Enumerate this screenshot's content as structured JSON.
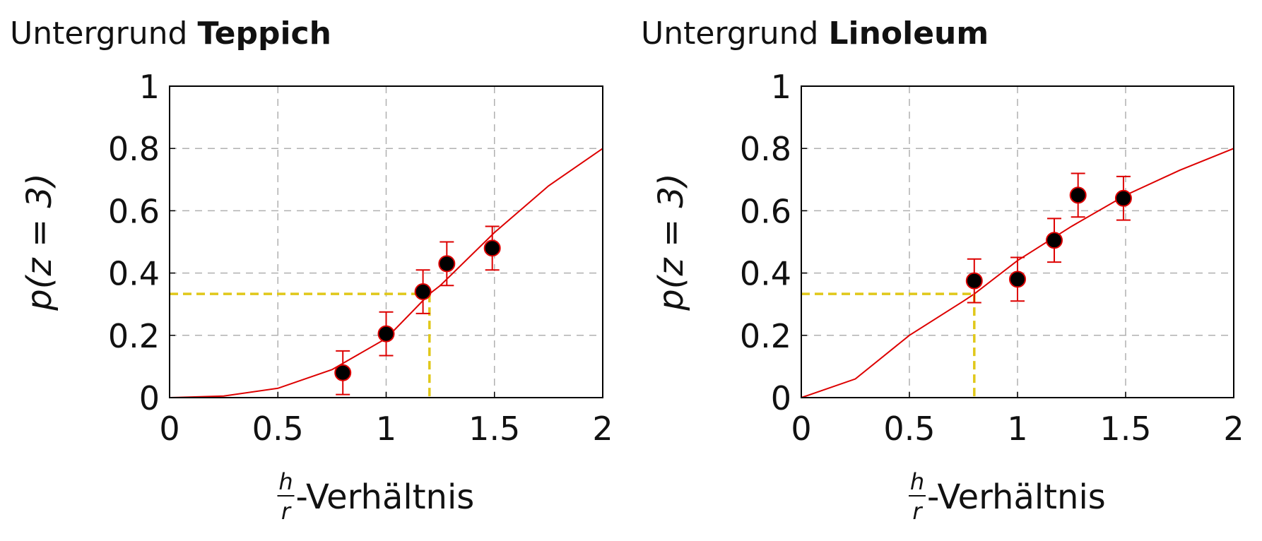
{
  "chart_data": [
    {
      "type": "scatter",
      "title": "Untergrund",
      "title_bold": "Teppich",
      "ylabel": "p(z = 3)",
      "xlabel_num": "h",
      "xlabel_den": "r",
      "xlabel": "-Verhältnis",
      "xlim": [
        0,
        2
      ],
      "ylim": [
        0,
        1
      ],
      "xticks": [
        0,
        0.5,
        1,
        1.5,
        2
      ],
      "yticks": [
        0,
        0.2,
        0.4,
        0.6,
        0.8,
        1
      ],
      "grid": true,
      "series": [
        {
          "color": "#000000",
          "edge_color": "#dd0000",
          "x": [
            0.8,
            1.0,
            1.17,
            1.28,
            1.49
          ],
          "values": [
            0.08,
            0.205,
            0.34,
            0.43,
            0.48
          ],
          "errors": [
            0.07,
            0.07,
            0.07,
            0.07,
            0.07
          ]
        }
      ],
      "fit": {
        "color": "#dd0000",
        "x": [
          0,
          0.25,
          0.5,
          0.75,
          1,
          1.2,
          1.25,
          1.5,
          1.75,
          2
        ],
        "values": [
          0,
          0.005,
          0.03,
          0.09,
          0.19,
          0.333,
          0.36,
          0.53,
          0.68,
          0.8
        ]
      },
      "reference": {
        "color": "#e0c81a",
        "x": 1.2,
        "y": 0.333
      }
    },
    {
      "type": "scatter",
      "title": "Untergrund",
      "title_bold": "Linoleum",
      "ylabel": "p(z = 3)",
      "xlabel_num": "h",
      "xlabel_den": "r",
      "xlabel": "-Verhältnis",
      "xlim": [
        0,
        2
      ],
      "ylim": [
        0,
        1
      ],
      "xticks": [
        0,
        0.5,
        1,
        1.5,
        2
      ],
      "yticks": [
        0,
        0.2,
        0.4,
        0.6,
        0.8,
        1
      ],
      "grid": true,
      "series": [
        {
          "color": "#000000",
          "edge_color": "#dd0000",
          "x": [
            0.8,
            1.0,
            1.17,
            1.28,
            1.49
          ],
          "values": [
            0.375,
            0.38,
            0.505,
            0.65,
            0.64
          ],
          "errors": [
            0.07,
            0.07,
            0.07,
            0.07,
            0.07
          ]
        }
      ],
      "fit": {
        "color": "#dd0000",
        "x": [
          0,
          0.25,
          0.5,
          0.75,
          0.8,
          1,
          1.25,
          1.5,
          1.75,
          2
        ],
        "values": [
          0,
          0.06,
          0.2,
          0.31,
          0.333,
          0.44,
          0.55,
          0.65,
          0.73,
          0.8
        ]
      },
      "reference": {
        "color": "#e0c81a",
        "x": 0.8,
        "y": 0.333
      }
    }
  ]
}
